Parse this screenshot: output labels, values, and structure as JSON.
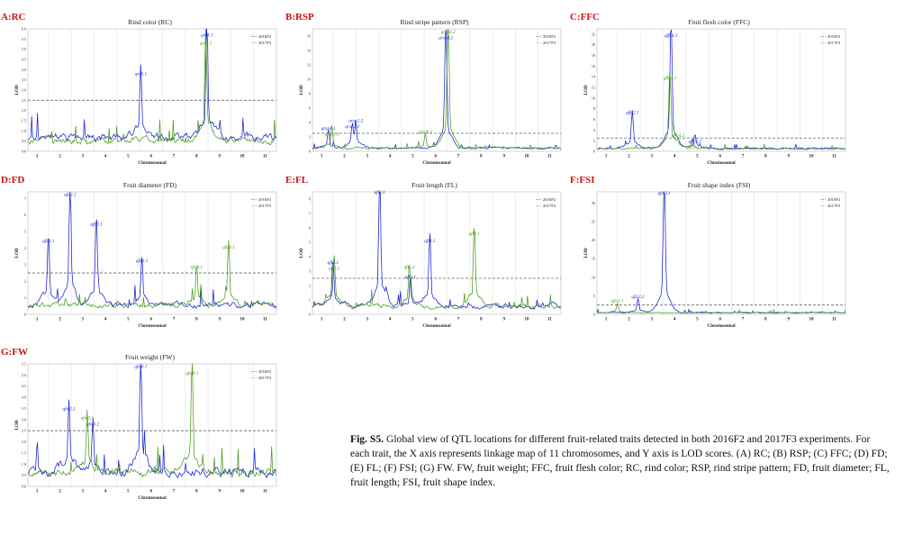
{
  "colors": {
    "s2016": "#1a1fd6",
    "s2017": "#4a9a1e",
    "threshold": "#666666",
    "panel_label": "#d01010",
    "qtl_2016": "#1a1fd6",
    "qtl_2017": "#3f9a1a"
  },
  "figure": {
    "caption_label": "Fig. S5.",
    "caption_text": "Global view of QTL locations for different fruit-related  traits detected in both 2016F2 and 2017F3 experiments.  For each trait, the X axis represents linkage map of 11 chromosomes, and Y axis is LOD scores.  (A) RC; (B) RSP; (C) FFC; (D) FD; (E) FL; (F) FSI; (G) FW. FW, fruit weight; FFC, fruit flesh color; RC, rind color; RSP, rind stripe pattern; FD, fruit diameter; FL, fruit length; FSI, fruit shape index."
  },
  "chart_data": [
    {
      "type": "line",
      "panel_label": "A:RC",
      "title": "Rind color (RC)",
      "xlabel": "Chromosomal",
      "ylabel": "LOD",
      "legend": [
        "2016F2",
        "2017F3"
      ],
      "legend_position": "top-right",
      "xlim": [
        0.6,
        11.5
      ],
      "ylim": [
        0,
        6.0
      ],
      "yticks": [
        "0.0",
        "0.5",
        "1.0",
        "1.5",
        "2.0",
        "2.5",
        "3.0",
        "3.5",
        "4.0",
        "4.5",
        "5.0",
        "5.5",
        "6.0"
      ],
      "xticks": [
        "1",
        "2",
        "3",
        "4",
        "5",
        "6",
        "7",
        "8",
        "9",
        "10",
        "11"
      ],
      "threshold": 2.5,
      "baseline": [
        0.6,
        0.5
      ],
      "seed": 11,
      "peaks": [
        {
          "x": 5.55,
          "lod": 3.6,
          "series": "2016F2",
          "label": "qrc6.1"
        },
        {
          "x": 8.45,
          "lod": 5.5,
          "series": "2016F2",
          "label": "qrc8.1"
        },
        {
          "x": 8.4,
          "lod": 5.1,
          "series": "2017F3",
          "label": "qrc8.1"
        }
      ]
    },
    {
      "type": "line",
      "panel_label": "B:RSP",
      "title": "Rind stripe pattern (RSP)",
      "xlabel": "Chromosomal",
      "ylabel": "LOD",
      "legend": [
        "2016F2",
        "2017F3"
      ],
      "legend_position": "top-right",
      "xlim": [
        0.6,
        11.5
      ],
      "ylim": [
        0,
        17
      ],
      "yticks": [
        "0",
        "2",
        "4",
        "6",
        "8",
        "10",
        "12",
        "14",
        "16"
      ],
      "xticks": [
        "1",
        "2",
        "3",
        "4",
        "5",
        "6",
        "7",
        "8",
        "9",
        "10",
        "11"
      ],
      "threshold": 2.5,
      "baseline": [
        0.4,
        0.4
      ],
      "seed": 23,
      "peaks": [
        {
          "x": 1.3,
          "lod": 2.6,
          "series": "2016F2",
          "label": "qrsp1.1"
        },
        {
          "x": 1.45,
          "lod": 3.1,
          "series": "2017F3",
          "label": "qrsp1.2"
        },
        {
          "x": 2.35,
          "lod": 2.9,
          "series": "2016F2",
          "label": "qrsp2.1"
        },
        {
          "x": 2.5,
          "lod": 3.7,
          "series": "2016F2",
          "label": "qrsp2.2"
        },
        {
          "x": 6.55,
          "lod": 16.0,
          "series": "2017F3",
          "label": "qrsp6.2"
        },
        {
          "x": 6.45,
          "lod": 15.4,
          "series": "2016F2",
          "label": "qrsp6.2"
        },
        {
          "x": 5.55,
          "lod": 2.1,
          "series": "2017F3",
          "label": "qrsp6.1"
        }
      ]
    },
    {
      "type": "line",
      "panel_label": "C:FFC",
      "title": "Fruit flesh color (FFC)",
      "xlabel": "Chromosomal",
      "ylabel": "LOD",
      "legend": [
        "2016F2",
        "2017F3"
      ],
      "legend_position": "top-right",
      "xlim": [
        0.6,
        11.5
      ],
      "ylim": [
        0,
        23
      ],
      "yticks": [
        "0",
        "2",
        "4",
        "6",
        "8",
        "10",
        "12",
        "14",
        "16",
        "18",
        "20",
        "22"
      ],
      "xticks": [
        "1",
        "2",
        "3",
        "4",
        "5",
        "6",
        "7",
        "8",
        "9",
        "10",
        "11"
      ],
      "threshold": 2.5,
      "baseline": [
        0.5,
        0.4
      ],
      "seed": 37,
      "peaks": [
        {
          "x": 2.15,
          "lod": 6.5,
          "series": "2016F2",
          "label": "qffc2.1"
        },
        {
          "x": 3.85,
          "lod": 21.0,
          "series": "2016F2",
          "label": "qffc4.1"
        },
        {
          "x": 3.8,
          "lod": 13.0,
          "series": "2017F3",
          "label": "qffc4.1"
        },
        {
          "x": 4.15,
          "lod": 2.2,
          "series": "2017F3",
          "label": "qffc4.2"
        },
        {
          "x": 4.9,
          "lod": 2.8,
          "series": "2016F2",
          "label": "qffc5.2"
        },
        {
          "x": 4.8,
          "lod": 2.0,
          "series": "2017F3",
          "label": "qffc5.2"
        }
      ]
    },
    {
      "type": "line",
      "panel_label": "D:FD",
      "title": "Fruit diameter (FD)",
      "xlabel": "Chromosomal",
      "ylabel": "LOD",
      "legend": [
        "2016F2",
        "2017F3"
      ],
      "legend_position": "top-right",
      "xlim": [
        0.6,
        11.5
      ],
      "ylim": [
        0,
        7.4
      ],
      "yticks": [
        "0",
        "1",
        "2",
        "3",
        "4",
        "5",
        "6",
        "7"
      ],
      "xticks": [
        "1",
        "2",
        "3",
        "4",
        "5",
        "6",
        "7",
        "8",
        "9",
        "10",
        "11"
      ],
      "threshold": 2.5,
      "baseline": [
        0.5,
        0.5
      ],
      "seed": 41,
      "peaks": [
        {
          "x": 1.5,
          "lod": 4.2,
          "series": "2016F2",
          "label": "qfd2.1"
        },
        {
          "x": 2.45,
          "lod": 7.0,
          "series": "2016F2",
          "label": "qfd2.2"
        },
        {
          "x": 3.6,
          "lod": 5.2,
          "series": "2016F2",
          "label": "qfd3.1"
        },
        {
          "x": 5.6,
          "lod": 3.0,
          "series": "2016F2",
          "label": "qfd6.1"
        },
        {
          "x": 8.0,
          "lod": 2.6,
          "series": "2017F3",
          "label": "qfd8.1"
        },
        {
          "x": 9.4,
          "lod": 3.8,
          "series": "2017F3",
          "label": "qfd9.1"
        }
      ]
    },
    {
      "type": "line",
      "panel_label": "E:FL",
      "title": "Fruit length (FL)",
      "xlabel": "Chromosomal",
      "ylabel": "LOD",
      "legend": [
        "2016F2",
        "2017F3"
      ],
      "legend_position": "top-right",
      "xlim": [
        0.6,
        11.5
      ],
      "ylim": [
        0,
        8.5
      ],
      "yticks": [
        "0",
        "1",
        "2",
        "3",
        "4",
        "5",
        "6",
        "7",
        "8"
      ],
      "xticks": [
        "1",
        "2",
        "3",
        "4",
        "5",
        "6",
        "7",
        "8",
        "9",
        "10",
        "11"
      ],
      "threshold": 2.5,
      "baseline": [
        0.5,
        0.5
      ],
      "seed": 53,
      "peaks": [
        {
          "x": 1.5,
          "lod": 3.3,
          "series": "2016F2",
          "label": "qfl2.1"
        },
        {
          "x": 1.55,
          "lod": 3.6,
          "series": "2017F3",
          "label": "qfl2.1"
        },
        {
          "x": 3.55,
          "lod": 8.2,
          "series": "2016F2",
          "label": "qfl3.1"
        },
        {
          "x": 4.9,
          "lod": 2.3,
          "series": "2016F2",
          "label": "qfl5.1"
        },
        {
          "x": 4.85,
          "lod": 3.0,
          "series": "2017F3",
          "label": "qfl5.2"
        },
        {
          "x": 5.75,
          "lod": 4.8,
          "series": "2016F2",
          "label": "qfl6.1"
        },
        {
          "x": 7.7,
          "lod": 5.3,
          "series": "2017F3",
          "label": "qfl8.1"
        }
      ]
    },
    {
      "type": "line",
      "panel_label": "F:FSI",
      "title": "Fruit shape index (FSI)",
      "xlabel": "Chromosomal",
      "ylabel": "LOD",
      "legend": [
        "2016F2",
        "2017F3"
      ],
      "legend_position": "top-right",
      "xlim": [
        0.6,
        11.5
      ],
      "ylim": [
        0,
        33
      ],
      "yticks": [
        "0",
        "5",
        "10",
        "15",
        "20",
        "25",
        "30"
      ],
      "xticks": [
        "1",
        "2",
        "3",
        "4",
        "5",
        "6",
        "7",
        "8",
        "9",
        "10",
        "11"
      ],
      "threshold": 2.5,
      "baseline": [
        0.4,
        0.4
      ],
      "seed": 67,
      "peaks": [
        {
          "x": 1.5,
          "lod": 2.6,
          "series": "2017F3",
          "label": "qfsi2.1"
        },
        {
          "x": 2.4,
          "lod": 3.6,
          "series": "2016F2",
          "label": "qfsi2.2"
        },
        {
          "x": 3.55,
          "lod": 31.5,
          "series": "2016F2",
          "label": "qfsi3.1"
        }
      ]
    },
    {
      "type": "line",
      "panel_label": "G:FW",
      "title": "Fruit weight (FW)",
      "xlabel": "Chromosomal",
      "ylabel": "LOD",
      "legend": [
        "2016F2",
        "2017F3"
      ],
      "legend_position": "top-right",
      "xlim": [
        0.6,
        11.5
      ],
      "ylim": [
        0,
        5.5
      ],
      "yticks": [
        "0.0",
        "0.5",
        "1.0",
        "1.5",
        "2.0",
        "2.5",
        "3.0",
        "3.5",
        "4.0",
        "4.5",
        "5.0",
        "5.5"
      ],
      "xticks": [
        "1",
        "2",
        "3",
        "4",
        "5",
        "6",
        "7",
        "8",
        "9",
        "10",
        "11"
      ],
      "threshold": 2.5,
      "baseline": [
        0.6,
        0.6
      ],
      "seed": 79,
      "peaks": [
        {
          "x": 2.4,
          "lod": 3.3,
          "series": "2016F2",
          "label": "qfw2.1"
        },
        {
          "x": 3.2,
          "lod": 2.9,
          "series": "2017F3",
          "label": "qfw3.1"
        },
        {
          "x": 3.45,
          "lod": 2.6,
          "series": "2016F2",
          "label": "qfw3.2"
        },
        {
          "x": 5.55,
          "lod": 5.2,
          "series": "2016F2",
          "label": "qfw6.1"
        },
        {
          "x": 7.8,
          "lod": 4.9,
          "series": "2017F3",
          "label": "qfw8.1"
        }
      ]
    }
  ]
}
